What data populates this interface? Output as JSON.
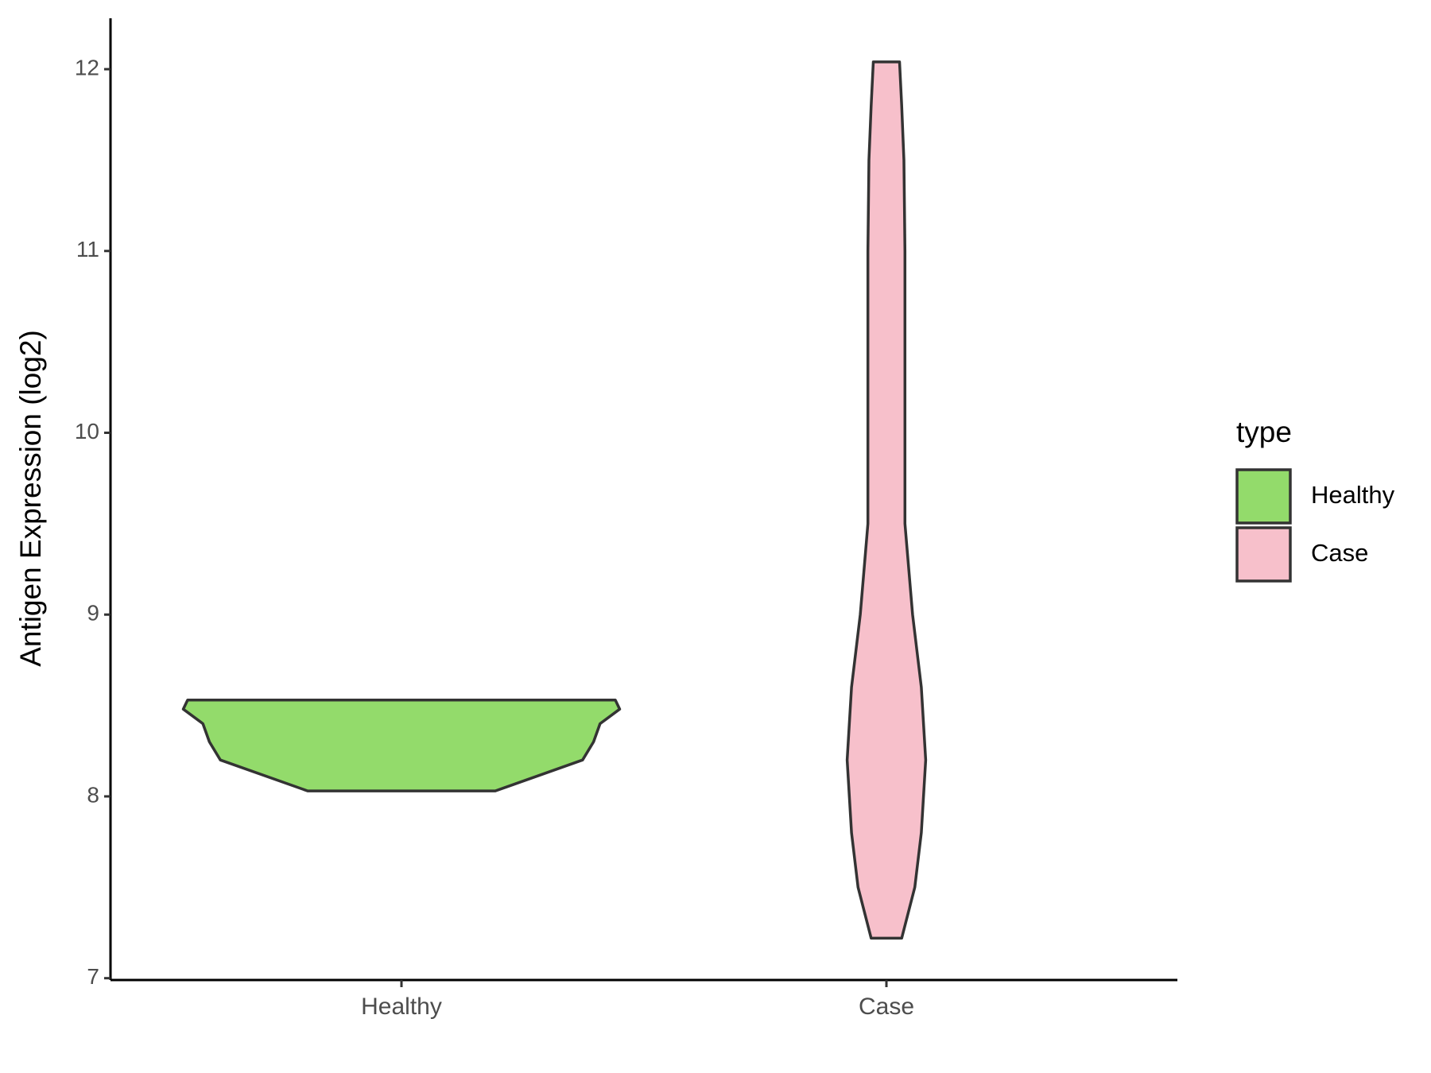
{
  "chart_data": {
    "type": "violin",
    "y_label": "Antigen Expression (log2)",
    "categories": [
      "Healthy",
      "Case"
    ],
    "legend_title": "type",
    "series": [
      {
        "name": "Healthy",
        "color": "#93db6b",
        "y": [
          8.03,
          8.2,
          8.3,
          8.4,
          8.48,
          8.53
        ],
        "density": [
          0.43,
          0.83,
          0.88,
          0.91,
          1.0,
          0.98
        ]
      },
      {
        "name": "Case",
        "color": "#f7c0cb",
        "y": [
          7.22,
          7.5,
          7.8,
          8.2,
          8.6,
          9.0,
          9.5,
          10.0,
          10.5,
          11.0,
          11.5,
          11.8,
          12.04
        ],
        "density": [
          0.07,
          0.13,
          0.16,
          0.18,
          0.16,
          0.12,
          0.085,
          0.085,
          0.085,
          0.085,
          0.08,
          0.07,
          0.06
        ]
      }
    ],
    "ylim": [
      6.99,
      12.28
    ],
    "yticks": [
      7,
      8,
      9,
      10,
      11,
      12
    ],
    "legend": "right"
  }
}
